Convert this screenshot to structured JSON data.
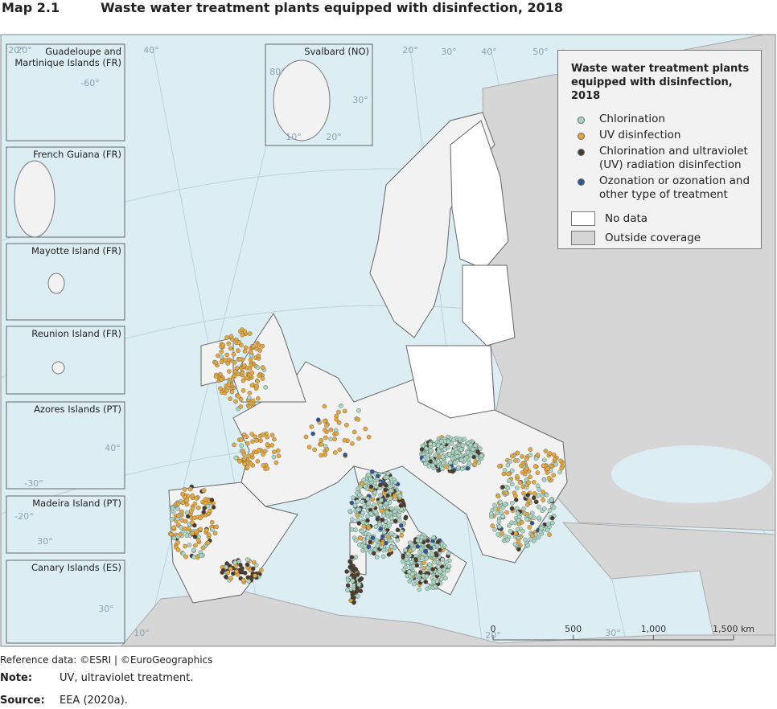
{
  "header": {
    "number": "Map 2.1",
    "title": "Waste water treatment plants equipped with disinfection, 2018"
  },
  "insets": [
    {
      "label": "Guadeloupe and Martinique Islands (FR)"
    },
    {
      "label": "French Guiana (FR)"
    },
    {
      "label": "Mayotte Island (FR)"
    },
    {
      "label": "Reunion Island (FR)"
    },
    {
      "label": "Azores Islands (PT)"
    },
    {
      "label": "Madeira Island (PT)"
    },
    {
      "label": "Canary Islands (ES)"
    },
    {
      "label": "Svalbard (NO)"
    }
  ],
  "graticule_labels": [
    "20°",
    "40°",
    "20°",
    "30°",
    "40°",
    "50°",
    "10°",
    "20°",
    "30°",
    "20°",
    "-60°",
    "80°",
    "30°",
    "10°",
    "20°",
    "40°",
    "-30°",
    "-20°",
    "30°",
    "30°"
  ],
  "legend": {
    "title": "Waste water treatment plants equipped with disinfection, 2018",
    "items": [
      {
        "label": "Chlorination",
        "color": "#a9d6c2"
      },
      {
        "label": "UV disinfection",
        "color": "#e6a83a"
      },
      {
        "label": "Chlorination and ultraviolet (UV) radiation disinfection",
        "color": "#4a3a2c"
      },
      {
        "label": "Ozonation or ozonation and other type of treatment",
        "color": "#2f5597"
      }
    ],
    "areas": [
      {
        "label": "No data",
        "color": "#ffffff"
      },
      {
        "label": "Outside coverage",
        "color": "#d6d6d6"
      }
    ]
  },
  "scale_bar": {
    "ticks": [
      0,
      500,
      {
        "value": 1000,
        "label": "1,000"
      },
      {
        "value": 1500,
        "label": "1,500 km"
      }
    ]
  },
  "footer": {
    "reference": "Reference data: ©ESRI | ©EuroGeographics",
    "note_label": "Note:",
    "note": "UV, ultraviolet treatment.",
    "source_label": "Source:",
    "source": "EEA (2020a)."
  }
}
